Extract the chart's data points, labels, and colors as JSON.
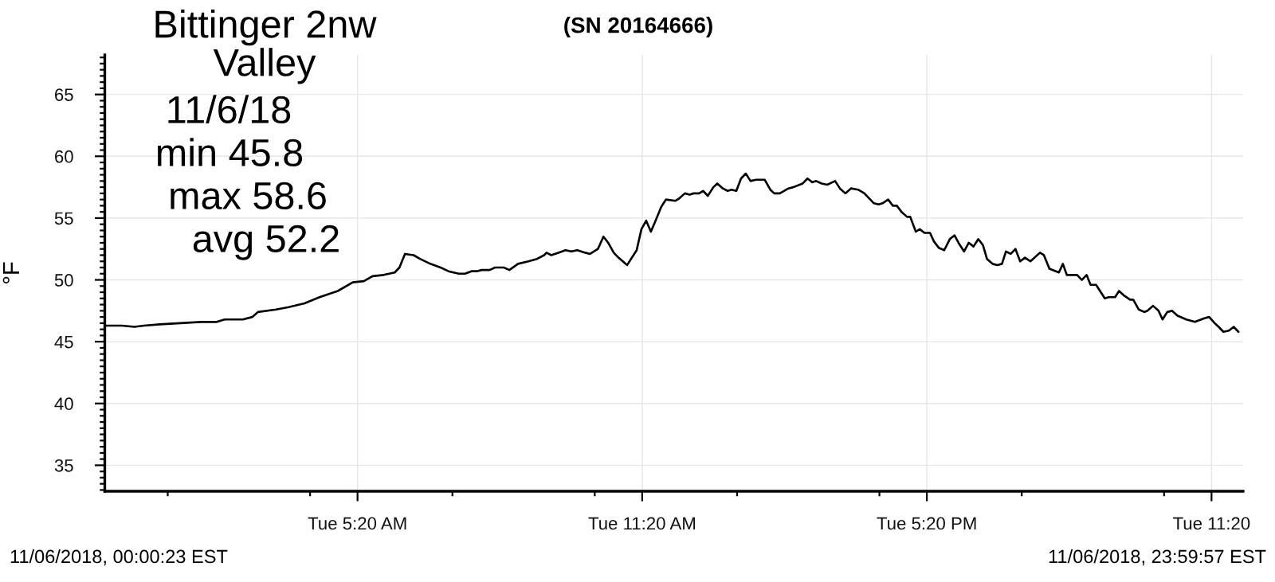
{
  "chart_data": {
    "type": "line",
    "title": "Bittinger 2nw\nValley",
    "subtitle": "(SN 20164666)",
    "ylabel": "°F",
    "annotations": [
      "11/6/18",
      "min 45.8",
      "max 58.6",
      "avg 52.2",
      "11/06/2018, 00:00:23 EST",
      "11/06/2018, 23:59:57 EST"
    ],
    "xlim": [
      "2018-11-06T00:00:23",
      "2018-11-06T23:59:57"
    ],
    "xticks": [
      {
        "value": "2018-11-06T01:20",
        "label": null
      },
      {
        "value": "2018-11-06T04:20",
        "label": null
      },
      {
        "value": "2018-11-06T05:20",
        "label": "Tue 5:20 AM"
      },
      {
        "value": "2018-11-06T07:20",
        "label": null
      },
      {
        "value": "2018-11-06T10:20",
        "label": null
      },
      {
        "value": "2018-11-06T11:20",
        "label": "Tue 11:20 AM"
      },
      {
        "value": "2018-11-06T13:20",
        "label": null
      },
      {
        "value": "2018-11-06T16:20",
        "label": null
      },
      {
        "value": "2018-11-06T17:20",
        "label": "Tue 5:20 PM"
      },
      {
        "value": "2018-11-06T19:20",
        "label": null
      },
      {
        "value": "2018-11-06T22:20",
        "label": null
      },
      {
        "value": "2018-11-06T23:20",
        "label": "Tue 11:20"
      }
    ],
    "ylim": [
      32.9,
      68.2
    ],
    "yticks": [
      {
        "value": 33,
        "label": null
      },
      {
        "value": 33.5,
        "label": null
      },
      {
        "value": 34,
        "label": null
      },
      {
        "value": 34.5,
        "label": null
      },
      35,
      {
        "value": 35.5,
        "label": null
      },
      {
        "value": 36,
        "label": null
      },
      {
        "value": 36.5,
        "label": null
      },
      {
        "value": 37,
        "label": null
      },
      {
        "value": 37.5,
        "label": null
      },
      {
        "value": 38,
        "label": null
      },
      {
        "value": 38.5,
        "label": null
      },
      {
        "value": 39,
        "label": null
      },
      {
        "value": 39.5,
        "label": null
      },
      40,
      {
        "value": 40.5,
        "label": null
      },
      {
        "value": 41,
        "label": null
      },
      {
        "value": 41.5,
        "label": null
      },
      {
        "value": 42,
        "label": null
      },
      {
        "value": 42.5,
        "label": null
      },
      {
        "value": 43,
        "label": null
      },
      {
        "value": 43.5,
        "label": null
      },
      {
        "value": 44,
        "label": null
      },
      {
        "value": 44.5,
        "label": null
      },
      45,
      {
        "value": 45.5,
        "label": null
      },
      {
        "value": 46,
        "label": null
      },
      {
        "value": 46.5,
        "label": null
      },
      {
        "value": 47,
        "label": null
      },
      {
        "value": 47.5,
        "label": null
      },
      {
        "value": 48,
        "label": null
      },
      {
        "value": 48.5,
        "label": null
      },
      {
        "value": 49,
        "label": null
      },
      {
        "value": 49.5,
        "label": null
      },
      50,
      {
        "value": 50.5,
        "label": null
      },
      {
        "value": 51,
        "label": null
      },
      {
        "value": 51.5,
        "label": null
      },
      {
        "value": 52,
        "label": null
      },
      {
        "value": 52.5,
        "label": null
      },
      {
        "value": 53,
        "label": null
      },
      {
        "value": 53.5,
        "label": null
      },
      {
        "value": 54,
        "label": null
      },
      {
        "value": 54.5,
        "label": null
      },
      55,
      {
        "value": 55.5,
        "label": null
      },
      {
        "value": 56,
        "label": null
      },
      {
        "value": 56.5,
        "label": null
      },
      {
        "value": 57,
        "label": null
      },
      {
        "value": 57.5,
        "label": null
      },
      {
        "value": 58,
        "label": null
      },
      {
        "value": 58.5,
        "label": null
      },
      {
        "value": 59,
        "label": null
      },
      {
        "value": 59.5,
        "label": null
      },
      60,
      {
        "value": 60.5,
        "label": null
      },
      {
        "value": 61,
        "label": null
      },
      {
        "value": 61.5,
        "label": null
      },
      {
        "value": 62,
        "label": null
      },
      {
        "value": 62.5,
        "label": null
      },
      {
        "value": 63,
        "label": null
      },
      {
        "value": 63.5,
        "label": null
      },
      {
        "value": 64,
        "label": null
      },
      {
        "value": 64.5,
        "label": null
      },
      65,
      {
        "value": 65.5,
        "label": null
      },
      {
        "value": 66,
        "label": null
      },
      {
        "value": 66.5,
        "label": null
      },
      {
        "value": 67,
        "label": null
      },
      {
        "value": 67.5,
        "label": null
      },
      {
        "value": 68,
        "label": null
      }
    ],
    "grid": true,
    "x": [
      "2018-11-06T00:00:23",
      "2018-11-06T00:22",
      "2018-11-06T00:38",
      "2018-11-06T00:50",
      "2018-11-06T01:10",
      "2018-11-06T01:36",
      "2018-11-06T02:02",
      "2018-11-06T02:22",
      "2018-11-06T02:32",
      "2018-11-06T02:55",
      "2018-11-06T03:07",
      "2018-11-06T03:14",
      "2018-11-06T03:37",
      "2018-11-06T03:53",
      "2018-11-06T04:13",
      "2018-11-06T04:32",
      "2018-11-06T04:55",
      "2018-11-06T05:14",
      "2018-11-06T05:28",
      "2018-11-06T05:39",
      "2018-11-06T05:53",
      "2018-11-06T06:07",
      "2018-11-06T06:13",
      "2018-11-06T06:20",
      "2018-11-06T06:31",
      "2018-11-06T06:39",
      "2018-11-06T06:52",
      "2018-11-06T07:05",
      "2018-11-06T07:15",
      "2018-11-06T07:28",
      "2018-11-06T07:36",
      "2018-11-06T07:44",
      "2018-11-06T07:51",
      "2018-11-06T07:57",
      "2018-11-06T08:07",
      "2018-11-06T08:14",
      "2018-11-06T08:25",
      "2018-11-06T08:32",
      "2018-11-06T08:43",
      "2018-11-06T08:56",
      "2018-11-06T09:07",
      "2018-11-06T09:16",
      "2018-11-06T09:19",
      "2018-11-06T09:25",
      "2018-11-06T09:34",
      "2018-11-06T09:43",
      "2018-11-06T09:50",
      "2018-11-06T09:58",
      "2018-11-06T10:08",
      "2018-11-06T10:14",
      "2018-11-06T10:24",
      "2018-11-06T10:31",
      "2018-11-06T10:37",
      "2018-11-06T10:44",
      "2018-11-06T10:50",
      "2018-11-06T11:01",
      "2018-11-06T11:13",
      "2018-11-06T11:19",
      "2018-11-06T11:25",
      "2018-11-06T11:31",
      "2018-11-06T11:37",
      "2018-11-06T11:44",
      "2018-11-06T11:50",
      "2018-11-06T12:02",
      "2018-11-06T12:07",
      "2018-11-06T12:14",
      "2018-11-06T12:20",
      "2018-11-06T12:25",
      "2018-11-06T12:32",
      "2018-11-06T12:37",
      "2018-11-06T12:43",
      "2018-11-06T12:50",
      "2018-11-06T12:55",
      "2018-11-06T13:02",
      "2018-11-06T13:08",
      "2018-11-06T13:13",
      "2018-11-06T13:19",
      "2018-11-06T13:25",
      "2018-11-06T13:31",
      "2018-11-06T13:37",
      "2018-11-06T13:44",
      "2018-11-06T13:55",
      "2018-11-06T14:02",
      "2018-11-06T14:07",
      "2018-11-06T14:14",
      "2018-11-06T14:25",
      "2018-11-06T14:31",
      "2018-11-06T14:43",
      "2018-11-06T14:49",
      "2018-11-06T14:55",
      "2018-11-06T15:00",
      "2018-11-06T15:07",
      "2018-11-06T15:14",
      "2018-11-06T15:24",
      "2018-11-06T15:30",
      "2018-11-06T15:37",
      "2018-11-06T15:44",
      "2018-11-06T15:53",
      "2018-11-06T16:01",
      "2018-11-06T16:13",
      "2018-11-06T16:19",
      "2018-11-06T16:24",
      "2018-11-06T16:31",
      "2018-11-06T16:37",
      "2018-11-06T16:42",
      "2018-11-06T16:48",
      "2018-11-06T16:55",
      "2018-11-06T16:59",
      "2018-11-06T17:06",
      "2018-11-06T17:11",
      "2018-11-06T17:17",
      "2018-11-06T17:24",
      "2018-11-06T17:29",
      "2018-11-06T17:35",
      "2018-11-06T17:42",
      "2018-11-06T17:49",
      "2018-11-06T17:55",
      "2018-11-06T18:00",
      "2018-11-06T18:07",
      "2018-11-06T18:13",
      "2018-11-06T18:19",
      "2018-11-06T18:25",
      "2018-11-06T18:31",
      "2018-11-06T18:36",
      "2018-11-06T18:43",
      "2018-11-06T18:49",
      "2018-11-06T18:55",
      "2018-11-06T19:00",
      "2018-11-06T19:06",
      "2018-11-06T19:12",
      "2018-11-06T19:18",
      "2018-11-06T19:24",
      "2018-11-06T19:31",
      "2018-11-06T19:43",
      "2018-11-06T19:48",
      "2018-11-06T19:55",
      "2018-11-06T20:07",
      "2018-11-06T20:12",
      "2018-11-06T20:17",
      "2018-11-06T20:30",
      "2018-11-06T20:36",
      "2018-11-06T20:42",
      "2018-11-06T20:47",
      "2018-11-06T20:54",
      "2018-11-06T21:05",
      "2018-11-06T21:10",
      "2018-11-06T21:18",
      "2018-11-06T21:23",
      "2018-11-06T21:30",
      "2018-11-06T21:37",
      "2018-11-06T21:41",
      "2018-11-06T21:48",
      "2018-11-06T21:55",
      "2018-11-06T21:59",
      "2018-11-06T22:06",
      "2018-11-06T22:13",
      "2018-11-06T22:18",
      "2018-11-06T22:24",
      "2018-11-06T22:30",
      "2018-11-06T22:37",
      "2018-11-06T22:48",
      "2018-11-06T22:59",
      "2018-11-06T23:11",
      "2018-11-06T23:17",
      "2018-11-06T23:24",
      "2018-11-06T23:29",
      "2018-11-06T23:35",
      "2018-11-06T23:42",
      "2018-11-06T23:48",
      "2018-11-06T23:54"
    ],
    "series": [
      {
        "color": "#000000",
        "values": [
          46.3,
          46.3,
          46.2,
          46.3,
          46.4,
          46.5,
          46.6,
          46.6,
          46.8,
          46.8,
          47.0,
          47.4,
          47.6,
          47.8,
          48.1,
          48.6,
          49.1,
          49.8,
          49.9,
          50.3,
          50.4,
          50.6,
          51.0,
          52.1,
          52.0,
          51.7,
          51.3,
          51.0,
          50.7,
          50.5,
          50.5,
          50.7,
          50.7,
          50.8,
          50.8,
          51.0,
          51.0,
          50.8,
          51.3,
          51.5,
          51.7,
          52.0,
          52.2,
          52.0,
          52.2,
          52.4,
          52.3,
          52.4,
          52.2,
          52.1,
          52.5,
          53.5,
          53.0,
          52.2,
          51.8,
          51.2,
          52.4,
          54.1,
          54.8,
          53.9,
          54.8,
          55.9,
          56.5,
          56.4,
          56.6,
          57.0,
          56.9,
          57.0,
          57.0,
          57.2,
          56.8,
          57.5,
          57.8,
          57.4,
          57.2,
          57.3,
          57.2,
          58.2,
          58.6,
          58.0,
          58.1,
          58.1,
          57.3,
          57.0,
          57.0,
          57.4,
          57.5,
          57.8,
          58.2,
          57.9,
          58.0,
          57.8,
          57.7,
          58.0,
          57.4,
          57.0,
          57.4,
          57.3,
          57.0,
          56.2,
          56.1,
          56.2,
          56.5,
          56.0,
          56.0,
          55.5,
          55.1,
          55.1,
          53.9,
          54.1,
          53.8,
          53.8,
          53.1,
          52.6,
          52.4,
          53.3,
          53.6,
          53.0,
          52.3,
          53.0,
          52.7,
          53.3,
          52.8,
          51.7,
          51.3,
          51.2,
          51.3,
          52.3,
          52.1,
          52.5,
          51.5,
          51.8,
          51.5,
          52.2,
          52.0,
          50.9,
          50.6,
          51.3,
          50.4,
          50.4,
          50.0,
          50.4,
          49.6,
          49.6,
          48.5,
          48.6,
          48.6,
          49.1,
          48.7,
          48.4,
          48.4,
          47.6,
          47.4,
          47.5,
          47.9,
          47.5,
          46.8,
          47.4,
          47.5,
          47.1,
          46.8,
          46.6,
          46.9,
          47.0,
          46.5,
          46.2,
          45.8,
          45.9,
          46.2,
          45.8
        ]
      }
    ]
  }
}
